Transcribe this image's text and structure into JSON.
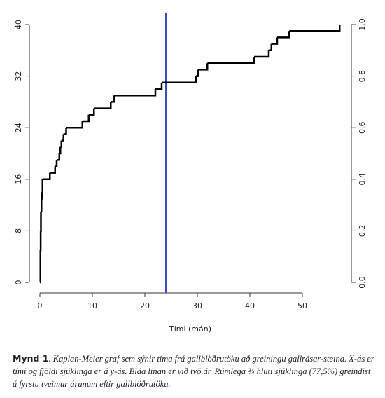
{
  "chart_data": {
    "type": "step",
    "x_label": "Tími (mán)",
    "x": [
      0,
      0.1,
      0.15,
      0.2,
      0.3,
      0.4,
      0.5,
      1.9,
      2.9,
      3.2,
      3.7,
      3.9,
      4.1,
      4.5,
      5.0,
      8.1,
      9.3,
      10.3,
      13.5,
      14.1,
      22.0,
      23.2,
      29.7,
      30.1,
      31.9,
      40.8,
      43.6,
      44.1,
      45.2,
      47.5,
      57.1
    ],
    "series": [
      {
        "color": "#000000",
        "values": [
          0,
          5,
          8,
          11,
          13,
          14,
          16,
          17,
          18,
          19,
          20,
          21,
          22,
          23,
          24,
          25,
          26,
          27,
          28,
          29,
          30,
          31,
          32,
          33,
          34,
          35,
          36,
          37,
          38,
          39,
          40
        ]
      }
    ],
    "xlim": [
      0,
      57.5
    ],
    "xticks": [
      0,
      10,
      20,
      30,
      40,
      50
    ],
    "ylim": [
      0,
      40
    ],
    "yticks": [
      0,
      8,
      16,
      24,
      32,
      40
    ],
    "y2lim": [
      0,
      1
    ],
    "y2ticks": [
      {
        "value": 0,
        "label": "0.0"
      },
      {
        "value": 0.2,
        "label": "0.2"
      },
      {
        "value": 0.4,
        "label": "0.4"
      },
      {
        "value": 0.6,
        "label": "0.6"
      },
      {
        "value": 0.8,
        "label": "0.8"
      },
      {
        "value": 1,
        "label": "1.0"
      }
    ],
    "vline": {
      "x": 24,
      "color": "#3a4fb0"
    },
    "caption_label": "Mynd 1",
    "caption_text": ". Kaplan-Meier graf sem sýnir tíma frá gallblöðrutöku að greiningu gallrásar-steina. X-ás er tími og fjöldi sjúklinga er á y-ás. Bláa línan er við tvö ár. Rúmlega ¾ hluti sjúklinga (77,5%) greindist á fyrstu tveimur árunum eftir gallblöðrutöku."
  }
}
